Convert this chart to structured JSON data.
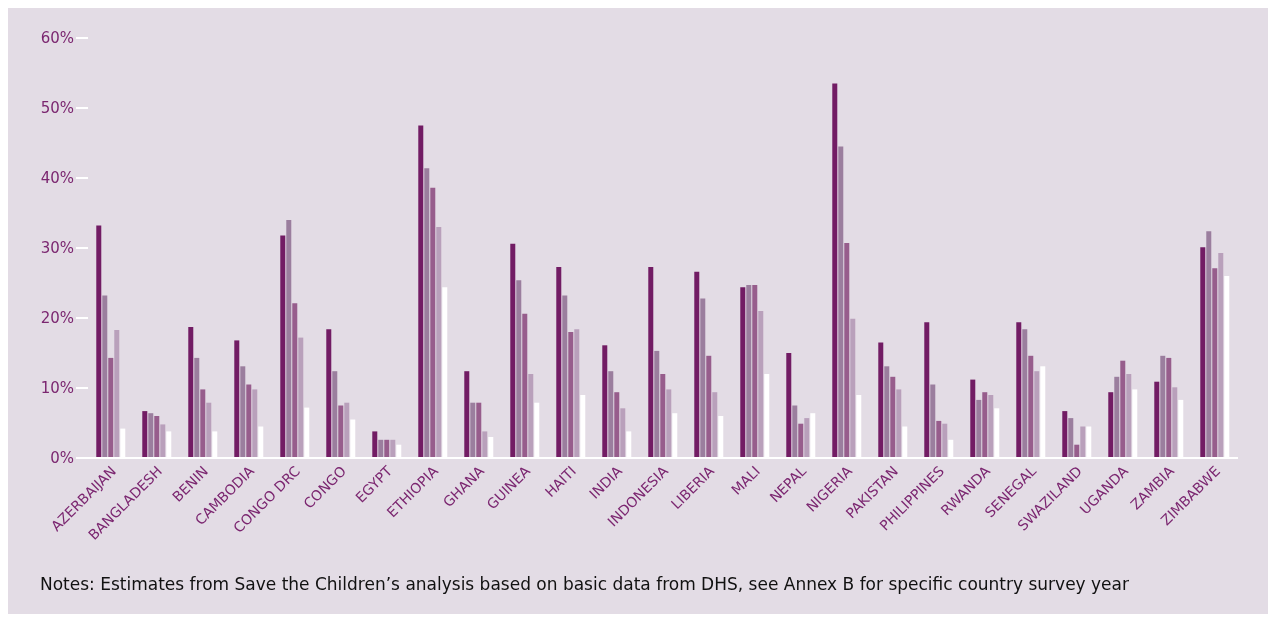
{
  "chart_data": {
    "type": "bar",
    "categories": [
      "AZERBAIJAN",
      "BANGLADESH",
      "BENIN",
      "CAMBODIA",
      "CONGO DRC",
      "CONGO",
      "EGYPT",
      "ETHIOPIA",
      "GHANA",
      "GUINEA",
      "HAITI",
      "INDIA",
      "INDONESIA",
      "LIBERIA",
      "MALI",
      "NEPAL",
      "NIGERIA",
      "PAKISTAN",
      "PHILIPPINES",
      "RWANDA",
      "SENEGAL",
      "SWAZILAND",
      "UGANDA",
      "ZAMBIA",
      "ZIMBABWE"
    ],
    "series": [
      {
        "color": "#721c64",
        "values": [
          33.2,
          6.7,
          18.7,
          16.8,
          31.8,
          18.4,
          3.8,
          47.5,
          12.4,
          30.6,
          27.3,
          16.1,
          27.3,
          26.6,
          24.4,
          15.0,
          53.5,
          16.5,
          19.4,
          11.2,
          19.4,
          6.7,
          9.4,
          10.9,
          30.1
        ]
      },
      {
        "color": "#9b7e9e",
        "values": [
          23.2,
          6.4,
          14.3,
          13.1,
          34.0,
          12.4,
          2.6,
          41.4,
          7.9,
          25.4,
          23.2,
          12.4,
          15.3,
          22.8,
          24.7,
          7.5,
          44.5,
          13.1,
          10.5,
          8.3,
          18.4,
          5.7,
          11.6,
          14.6,
          32.4
        ]
      },
      {
        "color": "#975d8c",
        "values": [
          14.3,
          6.0,
          9.8,
          10.5,
          22.1,
          7.5,
          2.6,
          38.6,
          7.9,
          20.6,
          18.0,
          9.4,
          12.0,
          14.6,
          24.7,
          4.9,
          30.7,
          11.6,
          5.3,
          9.4,
          14.6,
          1.9,
          13.9,
          14.3,
          27.1
        ]
      },
      {
        "color": "#b9a0bb",
        "values": [
          18.3,
          4.8,
          7.9,
          9.8,
          17.2,
          7.9,
          2.6,
          33.0,
          3.8,
          12.0,
          18.4,
          7.1,
          9.8,
          9.4,
          21.0,
          5.7,
          19.9,
          9.8,
          4.9,
          9.0,
          12.4,
          4.5,
          12.0,
          10.1,
          29.3
        ]
      },
      {
        "color": "#ffffff",
        "values": [
          4.2,
          3.8,
          3.8,
          4.5,
          7.2,
          5.5,
          1.9,
          24.4,
          3.0,
          7.9,
          9.0,
          3.8,
          6.4,
          6.0,
          12.0,
          6.4,
          9.0,
          4.5,
          2.6,
          7.1,
          13.1,
          4.5,
          9.8,
          8.3,
          26.0
        ]
      }
    ],
    "ylim": [
      0,
      60
    ],
    "yticks": [
      {
        "value": 0,
        "label": "0%"
      },
      {
        "value": 10,
        "label": "10%"
      },
      {
        "value": 20,
        "label": "20%"
      },
      {
        "value": 30,
        "label": "30%"
      },
      {
        "value": 40,
        "label": "40%"
      },
      {
        "value": 50,
        "label": "50%"
      },
      {
        "value": 60,
        "label": "60%"
      }
    ],
    "grid": false,
    "legend": false,
    "annotations": [
      "Notes: Estimates from Save the Children’s analysis based on basic data from DHS, see Annex B for specific country survey year"
    ]
  }
}
